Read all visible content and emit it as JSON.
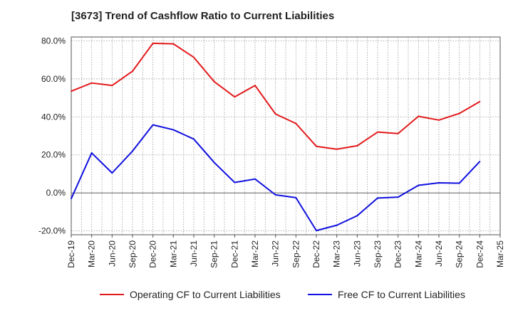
{
  "chart_data": {
    "type": "line",
    "title": "[3673]  Trend of Cashflow Ratio to Current Liabilities",
    "xlabel": "",
    "ylabel": "",
    "ylim": [
      -22,
      82
    ],
    "y_ticks": [
      -20,
      0,
      20,
      40,
      60,
      80
    ],
    "y_tick_labels": [
      "-20.0%",
      "0.0%",
      "20.0%",
      "40.0%",
      "60.0%",
      "80.0%"
    ],
    "x_tick_labels": [
      "Dec-19",
      "Mar-20",
      "Jun-20",
      "Sep-20",
      "Dec-20",
      "Mar-21",
      "Jun-21",
      "Sep-21",
      "Dec-21",
      "Mar-22",
      "Jun-22",
      "Sep-22",
      "Dec-22",
      "Mar-23",
      "Jun-23",
      "Sep-23",
      "Dec-23",
      "Mar-24",
      "Jun-24",
      "Sep-24",
      "Dec-24",
      "Mar-25"
    ],
    "categories": [
      "Dec-19",
      "Mar-20",
      "Jun-20",
      "Sep-20",
      "Dec-20",
      "Mar-21",
      "Jun-21",
      "Sep-21",
      "Dec-21",
      "Mar-22",
      "Jun-22",
      "Sep-22",
      "Dec-22",
      "Mar-23",
      "Jun-23",
      "Sep-23",
      "Dec-23",
      "Mar-24",
      "Jun-24",
      "Sep-24",
      "Dec-24"
    ],
    "grid": true,
    "legend_position": "bottom",
    "series": [
      {
        "name": "Operating CF to Current Liabilities",
        "color": "#e31a1c",
        "values": [
          53.5,
          57.8,
          56.5,
          64.0,
          78.7,
          78.4,
          71.3,
          58.5,
          50.5,
          56.5,
          41.5,
          36.5,
          24.5,
          23.0,
          24.8,
          32.0,
          31.2,
          40.3,
          38.3,
          41.8,
          48.0
        ]
      },
      {
        "name": "Free CF to Current Liabilities",
        "color": "#1010e0",
        "values": [
          -3.0,
          21.0,
          10.5,
          22.0,
          35.8,
          33.2,
          28.3,
          16.0,
          5.5,
          7.3,
          -1.0,
          -2.5,
          -19.8,
          -17.0,
          -12.0,
          -2.7,
          -2.2,
          4.0,
          5.3,
          5.1,
          16.5
        ]
      }
    ]
  }
}
